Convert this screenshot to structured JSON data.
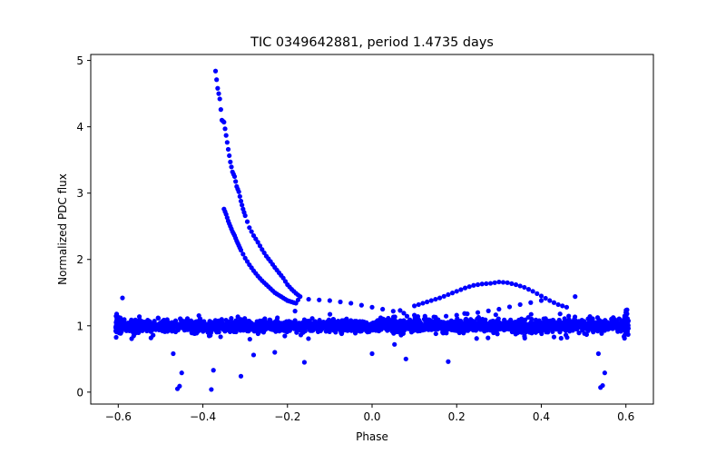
{
  "chart_data": {
    "type": "scatter",
    "title": "TIC 0349642881, period 1.4735 days",
    "xlabel": "Phase",
    "ylabel": "Normalized PDC flux",
    "xlim": [
      -0.665,
      0.665
    ],
    "ylim": [
      -0.18,
      5.09
    ],
    "grid": false,
    "marker_color": "#0000ff",
    "x_ticks": [
      -0.6,
      -0.4,
      -0.2,
      0.0,
      0.2,
      0.4,
      0.6
    ],
    "x_tick_labels": [
      "−0.6",
      "−0.4",
      "−0.2",
      "0.0",
      "0.2",
      "0.4",
      "0.6"
    ],
    "y_ticks": [
      0,
      1,
      2,
      3,
      4,
      5
    ],
    "y_tick_labels": [
      "0",
      "1",
      "2",
      "3",
      "4",
      "5"
    ],
    "band": {
      "x_range": [
        -0.6,
        0.6
      ],
      "center": 1.0,
      "spread": 0.1,
      "outer_spread": 0.2
    },
    "series": [
      {
        "description_role": "decay-upper",
        "x": [
          -0.37,
          -0.365,
          -0.36,
          -0.355,
          -0.35,
          -0.345,
          -0.34,
          -0.335,
          -0.33,
          -0.325,
          -0.32,
          -0.315,
          -0.31,
          -0.305,
          -0.3,
          -0.29,
          -0.28,
          -0.27,
          -0.26,
          -0.25,
          -0.24,
          -0.23,
          -0.22,
          -0.21,
          -0.2,
          -0.19,
          -0.18,
          -0.17
        ],
        "y": [
          4.84,
          4.58,
          4.42,
          4.1,
          4.07,
          3.87,
          3.66,
          3.47,
          3.32,
          3.25,
          3.1,
          3.02,
          2.88,
          2.76,
          2.66,
          2.48,
          2.36,
          2.26,
          2.15,
          2.05,
          1.97,
          1.88,
          1.8,
          1.72,
          1.62,
          1.55,
          1.49,
          1.44
        ]
      },
      {
        "description_role": "decay-lower",
        "x": [
          -0.35,
          -0.345,
          -0.34,
          -0.335,
          -0.33,
          -0.325,
          -0.32,
          -0.315,
          -0.31,
          -0.3,
          -0.29,
          -0.28,
          -0.27,
          -0.26,
          -0.25,
          -0.24,
          -0.23,
          -0.22,
          -0.21,
          -0.2,
          -0.19,
          -0.18
        ],
        "y": [
          2.76,
          2.68,
          2.58,
          2.5,
          2.42,
          2.36,
          2.28,
          2.21,
          2.14,
          2.02,
          1.92,
          1.83,
          1.75,
          1.68,
          1.62,
          1.56,
          1.5,
          1.46,
          1.42,
          1.38,
          1.36,
          1.34
        ]
      },
      {
        "description_role": "hump",
        "x": [
          0.1,
          0.12,
          0.14,
          0.16,
          0.18,
          0.2,
          0.22,
          0.24,
          0.26,
          0.28,
          0.3,
          0.32,
          0.34,
          0.36,
          0.38,
          0.4,
          0.42,
          0.44,
          0.46
        ],
        "y": [
          1.3,
          1.34,
          1.38,
          1.42,
          1.47,
          1.52,
          1.57,
          1.61,
          1.63,
          1.64,
          1.66,
          1.65,
          1.62,
          1.58,
          1.52,
          1.45,
          1.38,
          1.32,
          1.28
        ]
      },
      {
        "description_role": "upper-arc",
        "x": [
          -0.2,
          -0.15,
          -0.1,
          -0.05,
          0.0,
          0.05,
          0.1,
          0.15,
          0.2,
          0.25,
          0.3,
          0.35,
          0.4
        ],
        "y": [
          1.38,
          1.4,
          1.38,
          1.34,
          1.28,
          1.22,
          1.16,
          1.13,
          1.16,
          1.2,
          1.25,
          1.32,
          1.38
        ]
      },
      {
        "description_role": "outliers",
        "x": [
          -0.46,
          -0.455,
          -0.45,
          -0.38,
          -0.375,
          -0.31,
          -0.28,
          -0.23,
          -0.16,
          0.0,
          0.08,
          0.18,
          0.54,
          0.545,
          0.55,
          -0.47,
          0.535,
          -0.59,
          0.48
        ],
        "y": [
          0.05,
          0.09,
          0.29,
          0.04,
          0.33,
          0.24,
          0.56,
          0.6,
          0.45,
          0.58,
          0.5,
          0.46,
          0.07,
          0.1,
          0.29,
          0.58,
          0.58,
          1.42,
          1.44
        ]
      }
    ]
  }
}
